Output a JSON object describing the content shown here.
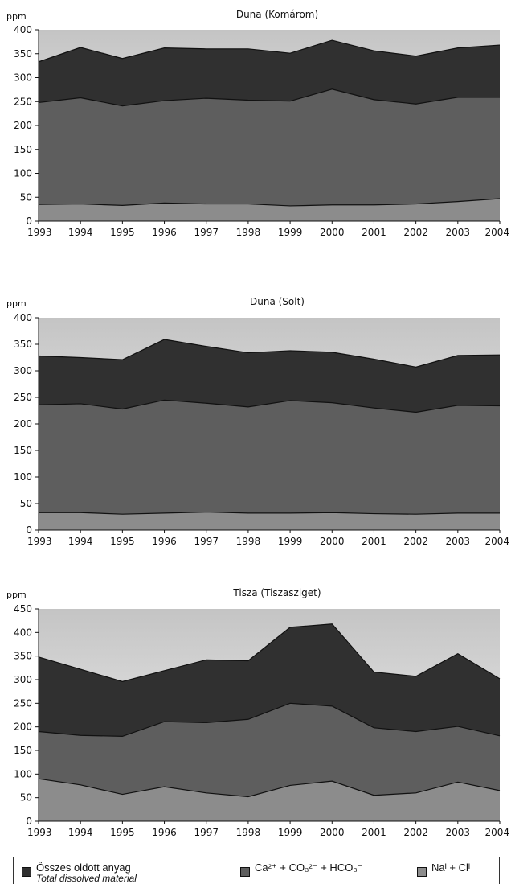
{
  "chart_data": [
    {
      "type": "area",
      "title": "Duna (Komárom)",
      "ylabel": "ppm",
      "ylim": [
        0,
        400
      ],
      "yticks": [
        0,
        50,
        100,
        150,
        200,
        250,
        300,
        350,
        400
      ],
      "x": [
        "1993",
        "1994",
        "1995",
        "1996",
        "1997",
        "1998",
        "1999",
        "2000",
        "2001",
        "2002",
        "2003",
        "2004"
      ],
      "series": [
        {
          "name": "Na⁺ + Cl⁻",
          "values": [
            35,
            36,
            33,
            38,
            36,
            36,
            32,
            34,
            34,
            36,
            41,
            47
          ]
        },
        {
          "name": "Ca²⁺ + CO₃²⁻ + HCO₃⁻",
          "values": [
            248,
            258,
            241,
            252,
            257,
            253,
            251,
            276,
            254,
            245,
            259,
            259
          ]
        },
        {
          "name": "Összes oldott anyag",
          "values": [
            333,
            363,
            340,
            362,
            360,
            360,
            351,
            378,
            356,
            345,
            362,
            368
          ]
        }
      ]
    },
    {
      "type": "area",
      "title": "Duna (Solt)",
      "ylabel": "ppm",
      "ylim": [
        0,
        400
      ],
      "yticks": [
        0,
        50,
        100,
        150,
        200,
        250,
        300,
        350,
        400
      ],
      "x": [
        "1993",
        "1994",
        "1995",
        "1996",
        "1997",
        "1998",
        "1999",
        "2000",
        "2001",
        "2002",
        "2003",
        "2004"
      ],
      "series": [
        {
          "name": "Na⁺ + Cl⁻",
          "values": [
            33,
            33,
            30,
            32,
            34,
            32,
            32,
            33,
            31,
            30,
            32,
            32
          ]
        },
        {
          "name": "Ca²⁺ + CO₃²⁻ + HCO₃⁻",
          "values": [
            236,
            238,
            228,
            245,
            239,
            232,
            244,
            240,
            230,
            222,
            235,
            234
          ]
        },
        {
          "name": "Összes oldott anyag",
          "values": [
            328,
            325,
            321,
            359,
            346,
            334,
            338,
            335,
            322,
            307,
            329,
            330
          ]
        }
      ]
    },
    {
      "type": "area",
      "title": "Tisza (Tiszasziget)",
      "ylabel": "ppm",
      "ylim": [
        0,
        450
      ],
      "yticks": [
        0,
        50,
        100,
        150,
        200,
        250,
        300,
        350,
        400,
        450
      ],
      "x": [
        "1993",
        "1994",
        "1995",
        "1996",
        "1997",
        "1998",
        "1999",
        "2000",
        "2001",
        "2002",
        "2003",
        "2004"
      ],
      "series": [
        {
          "name": "Na⁺ + Cl⁻",
          "values": [
            90,
            77,
            57,
            73,
            60,
            52,
            76,
            85,
            55,
            60,
            83,
            65
          ]
        },
        {
          "name": "Ca²⁺ + CO₃²⁻ + HCO₃⁻",
          "values": [
            190,
            182,
            180,
            211,
            209,
            216,
            250,
            244,
            198,
            190,
            201,
            181
          ]
        },
        {
          "name": "Összes oldott anyag",
          "values": [
            348,
            322,
            296,
            319,
            342,
            340,
            411,
            418,
            316,
            307,
            355,
            302
          ]
        }
      ]
    }
  ],
  "legend": {
    "items": [
      {
        "label": "Összes oldott anyag",
        "sublabel": "Total dissolved material",
        "color": "#303030"
      },
      {
        "label": "Ca²⁺ + CO₃²⁻ + HCO₃⁻",
        "color": "#5e5e5e"
      },
      {
        "label": "Naᴵ + Clᴵ",
        "color": "#8c8c8c"
      }
    ]
  },
  "colors": {
    "total_area": "#303030",
    "ion_area": "#5e5e5e",
    "nacl_area": "#8c8c8c",
    "plot_bg_top": "#c4c4c4",
    "plot_bg_bottom": "#f5f5f5"
  }
}
